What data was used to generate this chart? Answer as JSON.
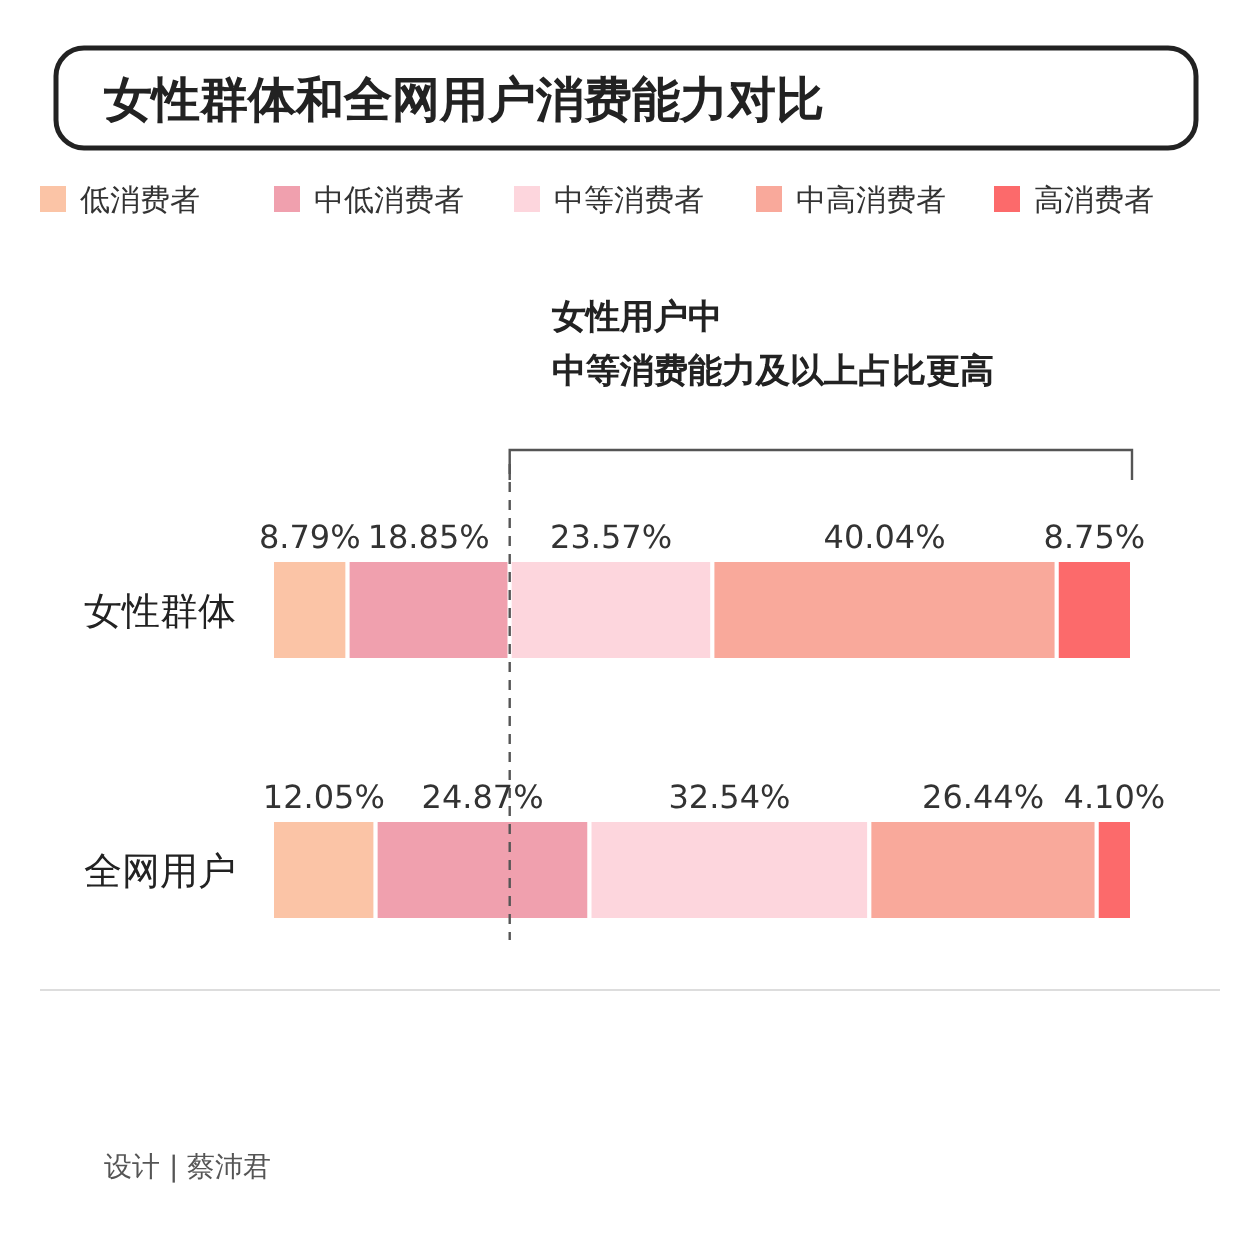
{
  "chart_data": {
    "type": "bar",
    "orientation": "horizontal",
    "stacked": true,
    "relative": false,
    "title": "女性群体和全网用户消费能力对比",
    "categories": [
      "女性群体",
      "全网用户"
    ],
    "legend": "top",
    "xlim": [
      0,
      100
    ],
    "tick_labels": "y",
    "series": [
      {
        "name": "低消费者",
        "color": "#fbc4a6",
        "values": [
          8.79,
          12.05
        ],
        "value_labels": [
          "8.79%",
          "12.05%"
        ]
      },
      {
        "name": "中低消费者",
        "color": "#f0a0ae",
        "values": [
          18.85,
          24.87
        ],
        "value_labels": [
          "18.85%",
          "24.87%"
        ]
      },
      {
        "name": "中等消费者",
        "color": "#fdd6dd",
        "values": [
          23.57,
          32.54
        ],
        "value_labels": [
          "23.57%",
          "32.54%"
        ]
      },
      {
        "name": "中高消费者",
        "color": "#f9a99b",
        "values": [
          40.04,
          26.44
        ],
        "value_labels": [
          "40.04%",
          "26.44%"
        ]
      },
      {
        "name": "高消费者",
        "color": "#fc6a6b",
        "values": [
          8.75,
          4.1
        ],
        "value_labels": [
          "8.75%",
          "4.10%"
        ]
      }
    ],
    "ref_lines": [
      {
        "axis": "x",
        "value": 27.64,
        "line_style": "dashed"
      }
    ],
    "annotations": [
      "女性用户中",
      "中等消费能力及以上占比更高",
      "设计 | 蔡沛君"
    ]
  }
}
